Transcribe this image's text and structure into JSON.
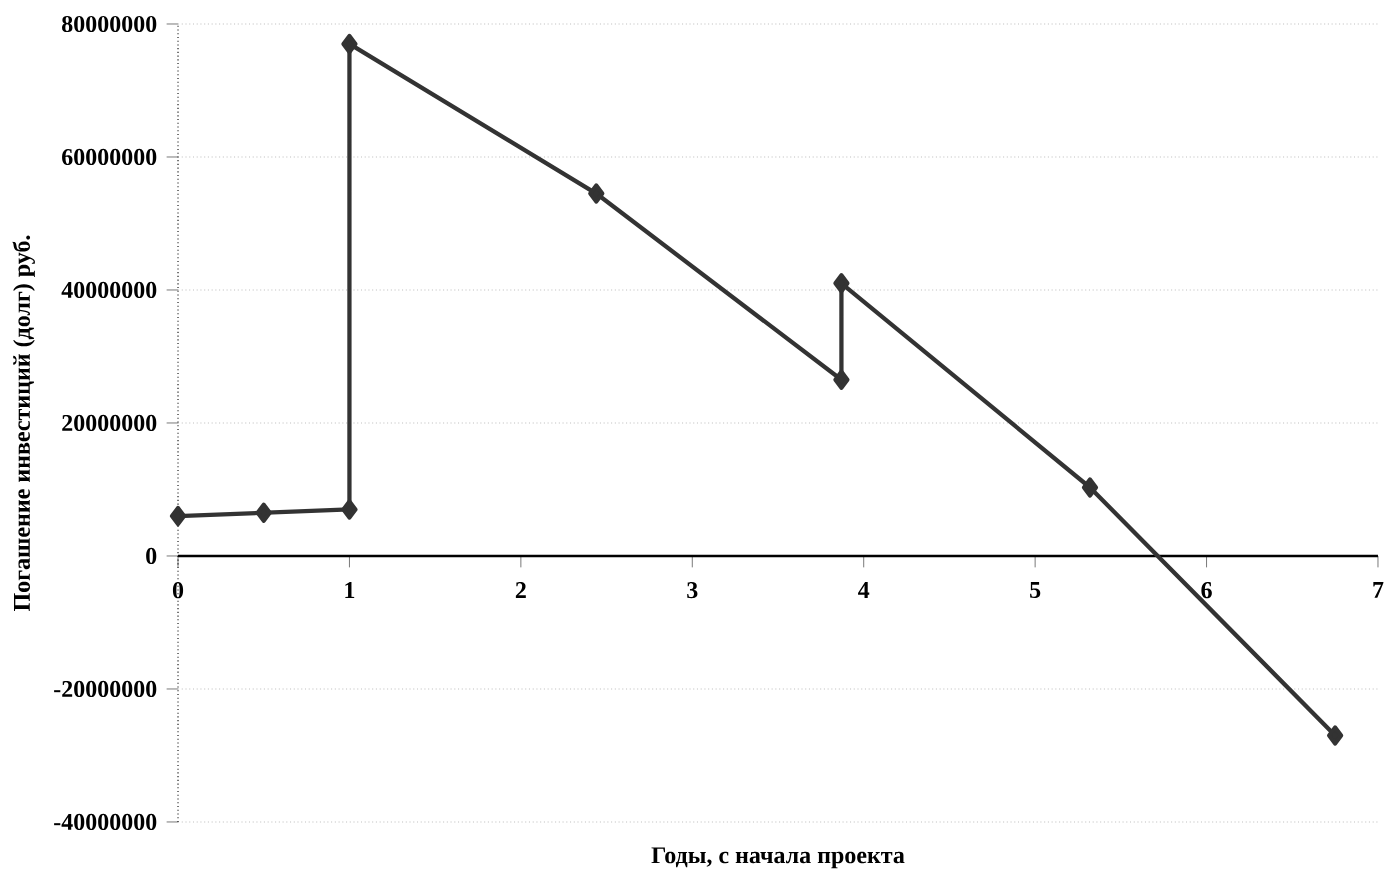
{
  "chart_data": {
    "type": "line",
    "xlabel": "Годы, с начала проекта",
    "ylabel": "Погашение инвестиций (долг) руб.",
    "series": [
      {
        "color": "#333333",
        "x": [
          0,
          0.5,
          1,
          1,
          2.44,
          3.87,
          3.87,
          5.32,
          6.75
        ],
        "values": [
          6000000,
          6500000,
          7000000,
          77000000,
          54500000,
          26500000,
          41000000,
          10300000,
          -27000000
        ]
      }
    ],
    "xlim": [
      0,
      7
    ],
    "ylim": [
      -40000000,
      80000000
    ],
    "xticks": [
      0,
      1,
      2,
      3,
      4,
      5,
      6,
      7
    ],
    "yticks": [
      -40000000,
      -20000000,
      0,
      20000000,
      40000000,
      60000000,
      80000000
    ],
    "marker": "diamond",
    "line_style": "solid",
    "grid": "y"
  }
}
